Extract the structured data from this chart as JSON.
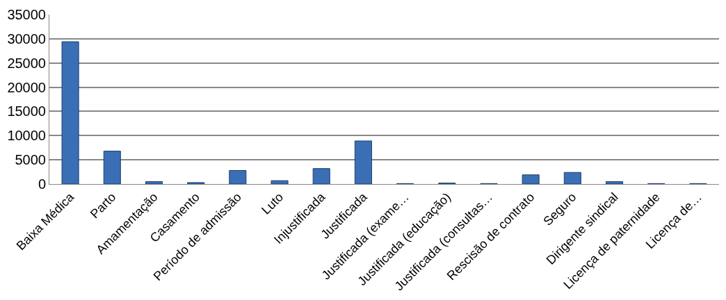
{
  "chart_data": {
    "type": "bar",
    "categories": [
      "Baixa Médica",
      "Parto",
      "Amamentação",
      "Casamento",
      "Período de admissão",
      "Luto",
      "Injustificada",
      "Justificada",
      "Justificada (exame…",
      "Justificada (educação)",
      "Justificada (consultas…",
      "Rescisão de contrato",
      "Seguro",
      "Dirigente sindical",
      "Licença de paternidade",
      "Licença de…"
    ],
    "values": [
      29400,
      6800,
      500,
      300,
      2800,
      700,
      3200,
      8900,
      100,
      200,
      100,
      1900,
      2400,
      500,
      100,
      100
    ],
    "color": "#3a6fb5",
    "ylim": [
      0,
      35000
    ],
    "yticks": [
      0,
      5000,
      10000,
      15000,
      20000,
      25000,
      30000,
      35000
    ],
    "grid": "y"
  }
}
